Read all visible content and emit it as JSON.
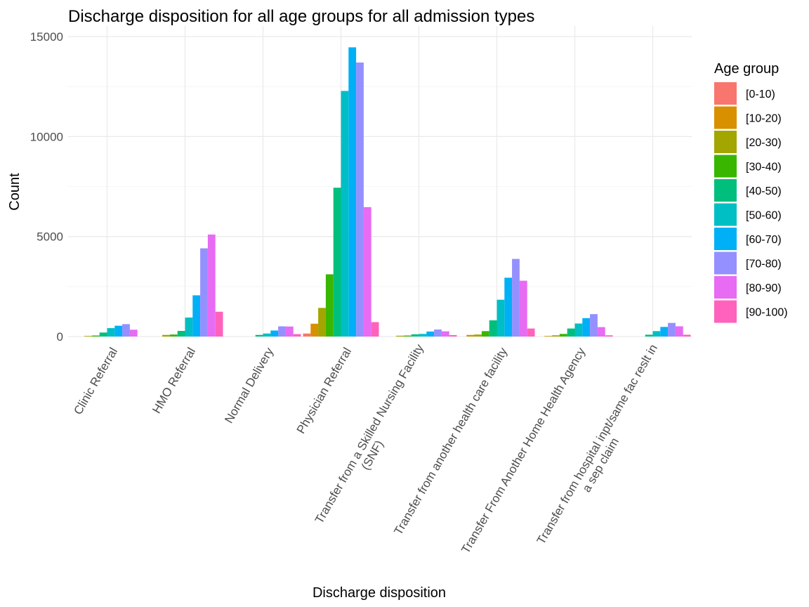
{
  "chart_data": {
    "type": "bar",
    "title": "Discharge disposition for all age groups for all admission types",
    "xlabel": "Discharge disposition",
    "ylabel": "Count",
    "ylim": [
      0,
      15000
    ],
    "yticks": [
      0,
      5000,
      10000,
      15000
    ],
    "grid": true,
    "legend": {
      "title": "Age group",
      "position": "right"
    },
    "categories": [
      [
        "Clinic Referral"
      ],
      [
        "HMO Referral"
      ],
      [
        "Normal Delivery"
      ],
      [
        "Physician Referral"
      ],
      [
        "Transfer from a Skilled Nursing Facility",
        "(SNF)"
      ],
      [
        "Transfer from another health care facility"
      ],
      [
        "Transfer From Another Home Health Agency"
      ],
      [
        "Transfer from hospital inpt/same fac reslt in",
        "a sep claim"
      ]
    ],
    "series": [
      {
        "name": "[0-10)",
        "color": "#F8766D",
        "values": [
          0,
          0,
          0,
          150,
          0,
          0,
          0,
          0
        ]
      },
      {
        "name": "[10-20)",
        "color": "#D89000",
        "values": [
          0,
          0,
          0,
          640,
          0,
          80,
          30,
          0
        ]
      },
      {
        "name": "[20-30)",
        "color": "#A3A500",
        "values": [
          30,
          80,
          0,
          1430,
          40,
          100,
          60,
          0
        ]
      },
      {
        "name": "[30-40)",
        "color": "#39B600",
        "values": [
          50,
          100,
          0,
          3110,
          50,
          270,
          130,
          0
        ]
      },
      {
        "name": "[40-50)",
        "color": "#00BF7D",
        "values": [
          200,
          280,
          80,
          7440,
          110,
          810,
          400,
          90
        ]
      },
      {
        "name": "[50-60)",
        "color": "#00BFC4",
        "values": [
          420,
          950,
          150,
          12280,
          130,
          1840,
          650,
          270
        ]
      },
      {
        "name": "[60-70)",
        "color": "#00B0F6",
        "values": [
          540,
          2060,
          300,
          14460,
          250,
          2940,
          920,
          480
        ]
      },
      {
        "name": "[70-80)",
        "color": "#9590FF",
        "values": [
          620,
          4410,
          510,
          13700,
          350,
          3880,
          1120,
          680
        ]
      },
      {
        "name": "[80-90)",
        "color": "#E76BF3",
        "values": [
          340,
          5100,
          500,
          6470,
          260,
          2790,
          470,
          510
        ]
      },
      {
        "name": "[90-100)",
        "color": "#FF62BC",
        "values": [
          0,
          1240,
          120,
          720,
          70,
          400,
          60,
          90
        ]
      }
    ]
  }
}
